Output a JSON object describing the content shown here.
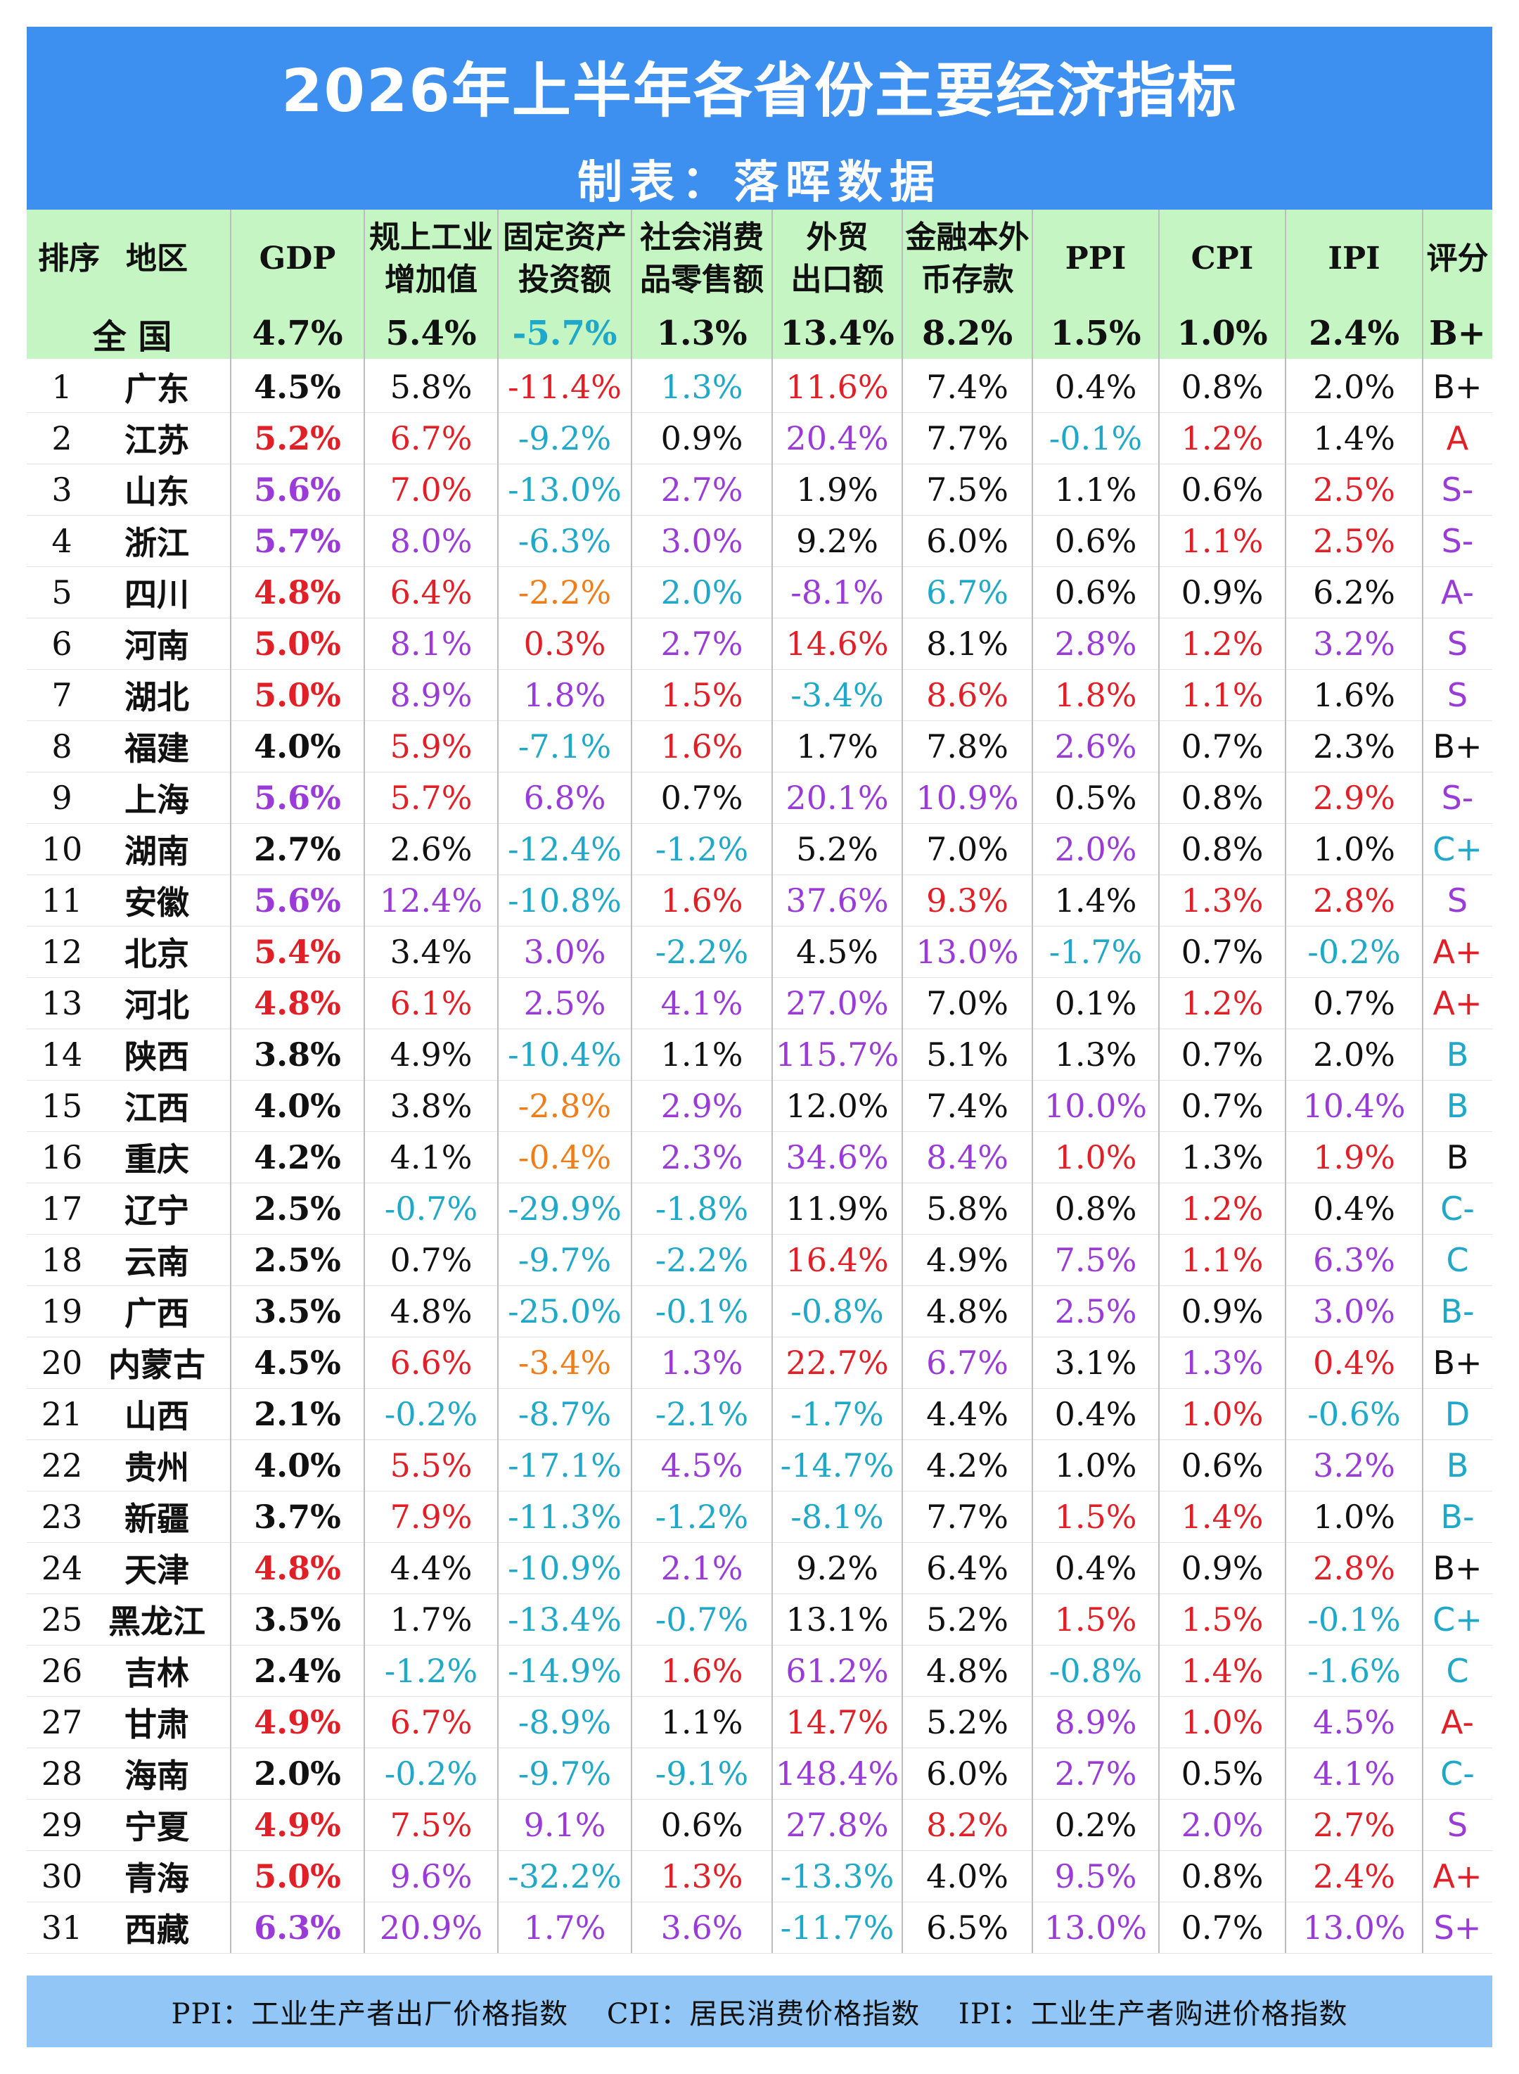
{
  "title": "2026年上半年各省份主要经济指标",
  "subtitle": "制表：落晖数据",
  "headers": [
    [
      "排序"
    ],
    [
      "地区"
    ],
    [
      "GDP"
    ],
    [
      "规上工业",
      "增加值"
    ],
    [
      "固定资产",
      "投资额"
    ],
    [
      "社会消费",
      "品零售额"
    ],
    [
      "外贸",
      "出口额"
    ],
    [
      "金融本外",
      "币存款"
    ],
    [
      "PPI"
    ],
    [
      "CPI"
    ],
    [
      "IPI"
    ],
    [
      "评分"
    ]
  ],
  "national": {
    "label": "全 国",
    "values": [
      "4.7%",
      "5.4%",
      "-5.7%",
      "1.3%",
      "13.4%",
      "8.2%",
      "1.5%",
      "1.0%",
      "2.4%",
      "B+"
    ],
    "colors": [
      "#111111",
      "#111111",
      "#1fa8c8",
      "#111111",
      "#111111",
      "#111111",
      "#111111",
      "#111111",
      "#111111",
      "#111111"
    ]
  },
  "colors": {
    "k": "#111111",
    "r": "#e11f26",
    "p": "#9a3bd8",
    "c": "#1fa8c8",
    "o": "#ef7d1a",
    "title_bg": "#3d8ff0",
    "header_bg": "#c6f5c4",
    "footer_bg": "#92c6f7"
  },
  "rows": [
    [
      "1",
      "广东",
      "4.5%",
      "5.8%",
      "-11.4%",
      "1.3%",
      "11.6%",
      "7.4%",
      "0.4%",
      "0.8%",
      "2.0%",
      "B+",
      "kkrcrkkkkkk"
    ],
    [
      "2",
      "江苏",
      "5.2%",
      "6.7%",
      "-9.2%",
      "0.9%",
      "20.4%",
      "7.7%",
      "-0.1%",
      "1.2%",
      "1.4%",
      "A",
      "rrckpkcrkr"
    ],
    [
      "3",
      "山东",
      "5.6%",
      "7.0%",
      "-13.0%",
      "2.7%",
      "1.9%",
      "7.5%",
      "1.1%",
      "0.6%",
      "2.5%",
      "S-",
      "prcpkkkkrp"
    ],
    [
      "4",
      "浙江",
      "5.7%",
      "8.0%",
      "-6.3%",
      "3.0%",
      "9.2%",
      "6.0%",
      "0.6%",
      "1.1%",
      "2.5%",
      "S-",
      "ppcpkkkrrp"
    ],
    [
      "5",
      "四川",
      "4.8%",
      "6.4%",
      "-2.2%",
      "2.0%",
      "-8.1%",
      "6.7%",
      "0.6%",
      "0.9%",
      "6.2%",
      "A-",
      "rrocpckkkpr"
    ],
    [
      "6",
      "河南",
      "5.0%",
      "8.1%",
      "0.3%",
      "2.7%",
      "14.6%",
      "8.1%",
      "2.8%",
      "1.2%",
      "3.2%",
      "S",
      "rprprkprpp"
    ],
    [
      "7",
      "湖北",
      "5.0%",
      "8.9%",
      "1.8%",
      "1.5%",
      "-3.4%",
      "8.6%",
      "1.8%",
      "1.1%",
      "1.6%",
      "S",
      "rpprcrrrkp"
    ],
    [
      "8",
      "福建",
      "4.0%",
      "5.9%",
      "-7.1%",
      "1.6%",
      "1.7%",
      "7.8%",
      "2.6%",
      "0.7%",
      "2.3%",
      "B+",
      "krcrkkpkkk"
    ],
    [
      "9",
      "上海",
      "5.6%",
      "5.7%",
      "6.8%",
      "0.7%",
      "20.1%",
      "10.9%",
      "0.5%",
      "0.8%",
      "2.9%",
      "S-",
      "prpkppkkrp"
    ],
    [
      "10",
      "湖南",
      "2.7%",
      "2.6%",
      "-12.4%",
      "-1.2%",
      "5.2%",
      "7.0%",
      "2.0%",
      "0.8%",
      "1.0%",
      "C+",
      "kkcckkpkkc"
    ],
    [
      "11",
      "安徽",
      "5.6%",
      "12.4%",
      "-10.8%",
      "1.6%",
      "37.6%",
      "9.3%",
      "1.4%",
      "1.3%",
      "2.8%",
      "S",
      "ppcrprkrrp"
    ],
    [
      "12",
      "北京",
      "5.4%",
      "3.4%",
      "3.0%",
      "-2.2%",
      "4.5%",
      "13.0%",
      "-1.7%",
      "0.7%",
      "-0.2%",
      "A+",
      "rkpckpckcr"
    ],
    [
      "13",
      "河北",
      "4.8%",
      "6.1%",
      "2.5%",
      "4.1%",
      "27.0%",
      "7.0%",
      "0.1%",
      "1.2%",
      "0.7%",
      "A+",
      "rrpppkkrkr"
    ],
    [
      "14",
      "陕西",
      "3.8%",
      "4.9%",
      "-10.4%",
      "1.1%",
      "115.7%",
      "5.1%",
      "1.3%",
      "0.7%",
      "2.0%",
      "B",
      "kkckpkkkkc"
    ],
    [
      "15",
      "江西",
      "4.0%",
      "3.8%",
      "-2.8%",
      "2.9%",
      "12.0%",
      "7.4%",
      "10.0%",
      "0.7%",
      "10.4%",
      "B",
      "kkopkkpkpc"
    ],
    [
      "16",
      "重庆",
      "4.2%",
      "4.1%",
      "-0.4%",
      "2.3%",
      "34.6%",
      "8.4%",
      "1.0%",
      "1.3%",
      "1.9%",
      "B",
      "kkoppprkrkc"
    ],
    [
      "17",
      "辽宁",
      "2.5%",
      "-0.7%",
      "-29.9%",
      "-1.8%",
      "11.9%",
      "5.8%",
      "0.8%",
      "1.2%",
      "0.4%",
      "C-",
      "kccckkkrkc"
    ],
    [
      "18",
      "云南",
      "2.5%",
      "0.7%",
      "-9.7%",
      "-2.2%",
      "16.4%",
      "4.9%",
      "7.5%",
      "1.1%",
      "6.3%",
      "C",
      "kkccrkprpc"
    ],
    [
      "19",
      "广西",
      "3.5%",
      "4.8%",
      "-25.0%",
      "-0.1%",
      "-0.8%",
      "4.8%",
      "2.5%",
      "0.9%",
      "3.0%",
      "B-",
      "kkccckpkpc"
    ],
    [
      "20",
      "内蒙古",
      "4.5%",
      "6.6%",
      "-3.4%",
      "1.3%",
      "22.7%",
      "6.7%",
      "3.1%",
      "1.3%",
      "0.4%",
      "B+",
      "kropr pkpr kk"
    ],
    [
      "21",
      "山西",
      "2.1%",
      "-0.2%",
      "-8.7%",
      "-2.1%",
      "-1.7%",
      "4.4%",
      "0.4%",
      "1.0%",
      "-0.6%",
      "D",
      "kccc ckkrcc"
    ],
    [
      "22",
      "贵州",
      "4.0%",
      "5.5%",
      "-17.1%",
      "4.5%",
      "-14.7%",
      "4.2%",
      "1.0%",
      "0.6%",
      "3.2%",
      "B",
      "krcpckkkpc"
    ],
    [
      "23",
      "新疆",
      "3.7%",
      "7.9%",
      "-11.3%",
      "-1.2%",
      "-8.1%",
      "7.7%",
      "1.5%",
      "1.4%",
      "1.0%",
      "B-",
      "krccckrrkc"
    ],
    [
      "24",
      "天津",
      "4.8%",
      "4.4%",
      "-10.9%",
      "2.1%",
      "9.2%",
      "6.4%",
      "0.4%",
      "0.9%",
      "2.8%",
      "B+",
      "rkcpkkkkrk"
    ],
    [
      "25",
      "黑龙江",
      "3.5%",
      "1.7%",
      "-13.4%",
      "-0.7%",
      "13.1%",
      "5.2%",
      "1.5%",
      "1.5%",
      "-0.1%",
      "C+",
      "kkcckkrrcc"
    ],
    [
      "26",
      "吉林",
      "2.4%",
      "-1.2%",
      "-14.9%",
      "1.6%",
      "61.2%",
      "4.8%",
      "-0.8%",
      "1.4%",
      "-1.6%",
      "C",
      "kccrpkcrcc"
    ],
    [
      "27",
      "甘肃",
      "4.9%",
      "6.7%",
      "-8.9%",
      "1.1%",
      "14.7%",
      "5.2%",
      "8.9%",
      "1.0%",
      "4.5%",
      "A-",
      "rrckrkprpr"
    ],
    [
      "28",
      "海南",
      "2.0%",
      "-0.2%",
      "-9.7%",
      "-9.1%",
      "148.4%",
      "6.0%",
      "2.7%",
      "0.5%",
      "4.1%",
      "C-",
      "kcccpkpkpc"
    ],
    [
      "29",
      "宁夏",
      "4.9%",
      "7.5%",
      "9.1%",
      "0.6%",
      "27.8%",
      "8.2%",
      "0.2%",
      "2.0%",
      "2.7%",
      "S",
      "rrpkprkprp"
    ],
    [
      "30",
      "青海",
      "5.0%",
      "9.6%",
      "-32.2%",
      "1.3%",
      "-13.3%",
      "4.0%",
      "9.5%",
      "0.8%",
      "2.4%",
      "A+",
      "rpcrckpkrr"
    ],
    [
      "31",
      "西藏",
      "6.3%",
      "20.9%",
      "1.7%",
      "3.6%",
      "-11.7%",
      "6.5%",
      "13.0%",
      "0.7%",
      "13.0%",
      "S+",
      "pppp ckpkpp"
    ]
  ],
  "footer": "PPI：工业生产者出厂价格指数　 CPI：居民消费价格指数　 IPI：工业生产者购进价格指数"
}
